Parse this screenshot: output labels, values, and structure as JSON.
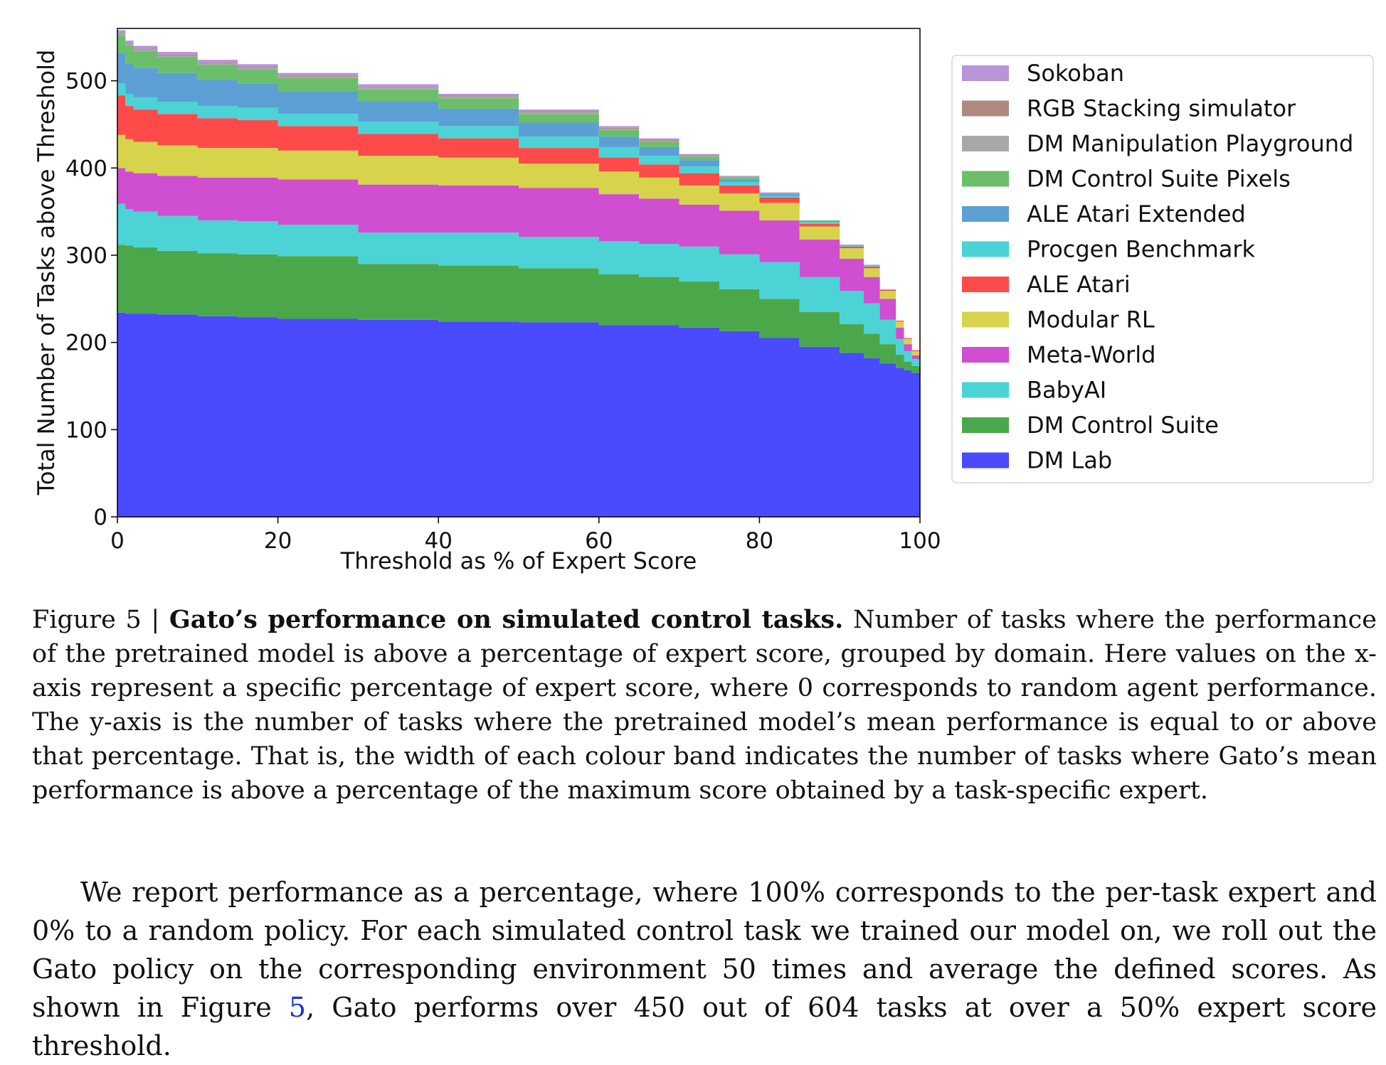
{
  "chart_data": {
    "type": "area",
    "stacked": true,
    "xlabel": "Threshold as % of Expert Score",
    "ylabel": "Total Number of Tasks above Threshold",
    "xlim": [
      0,
      100
    ],
    "ylim": [
      0,
      560
    ],
    "xticks": [
      0,
      20,
      40,
      60,
      80,
      100
    ],
    "yticks": [
      0,
      100,
      200,
      300,
      400,
      500
    ],
    "legend_position": "right",
    "x": [
      0,
      1,
      2,
      5,
      10,
      15,
      20,
      30,
      40,
      50,
      60,
      65,
      70,
      75,
      80,
      85,
      90,
      93,
      95,
      97,
      98,
      99,
      100
    ],
    "series": [
      {
        "name": "DM Lab",
        "color": "#4a4aff",
        "values": [
          234,
          233,
          233,
          232,
          230,
          229,
          227,
          226,
          224,
          223,
          220,
          220,
          217,
          213,
          205,
          195,
          188,
          182,
          176,
          171,
          168,
          165,
          155
        ]
      },
      {
        "name": "DM Control Suite",
        "color": "#4aa84a",
        "values": [
          78,
          78,
          76,
          73,
          72,
          72,
          72,
          64,
          64,
          62,
          58,
          55,
          53,
          48,
          45,
          40,
          33,
          28,
          22,
          15,
          10,
          8,
          5
        ]
      },
      {
        "name": "BabyAI",
        "color": "#4bd3d6",
        "values": [
          47,
          42,
          41,
          40,
          38,
          38,
          36,
          36,
          38,
          36,
          38,
          38,
          40,
          40,
          42,
          40,
          38,
          35,
          28,
          18,
          12,
          8,
          2
        ]
      },
      {
        "name": "Meta-World",
        "color": "#d04ed0",
        "values": [
          41,
          43,
          44,
          46,
          49,
          50,
          52,
          55,
          54,
          56,
          54,
          52,
          48,
          50,
          48,
          43,
          37,
          30,
          24,
          13,
          8,
          4,
          1
        ]
      },
      {
        "name": "Modular RL",
        "color": "#d7d44c",
        "values": [
          38,
          37,
          36,
          35,
          34,
          34,
          33,
          33,
          32,
          28,
          26,
          24,
          22,
          20,
          20,
          15,
          12,
          10,
          9,
          7,
          6,
          5,
          3
        ]
      },
      {
        "name": "ALE Atari",
        "color": "#ff4a4a",
        "values": [
          45,
          38,
          37,
          36,
          34,
          32,
          28,
          25,
          22,
          18,
          16,
          15,
          14,
          9,
          6,
          3,
          2,
          2,
          1,
          1,
          1,
          1,
          1
        ]
      },
      {
        "name": "Procgen Benchmark",
        "color": "#4bd3d6",
        "values": [
          14,
          14,
          14,
          14,
          14,
          14,
          14,
          14,
          14,
          13,
          12,
          10,
          8,
          4,
          2,
          2,
          1,
          1,
          1,
          0,
          0,
          0,
          0
        ]
      },
      {
        "name": "ALE Atari Extended",
        "color": "#5b9fd4",
        "values": [
          35,
          35,
          34,
          33,
          30,
          28,
          26,
          23,
          20,
          16,
          12,
          10,
          7,
          3,
          2,
          1,
          1,
          1,
          0,
          0,
          0,
          0,
          0
        ]
      },
      {
        "name": "DM Control Suite Pixels",
        "color": "#6bbf6b",
        "values": [
          20,
          20,
          19,
          18,
          17,
          16,
          15,
          14,
          12,
          10,
          8,
          6,
          4,
          2,
          1,
          1,
          0,
          0,
          0,
          0,
          0,
          0,
          0
        ]
      },
      {
        "name": "DM Manipulation Playground",
        "color": "#a8a8a8",
        "values": [
          2,
          2,
          2,
          2,
          2,
          2,
          2,
          2,
          2,
          2,
          1,
          1,
          1,
          1,
          0,
          0,
          0,
          0,
          0,
          0,
          0,
          0,
          0
        ]
      },
      {
        "name": "RGB Stacking simulator",
        "color": "#b08880",
        "values": [
          1,
          1,
          1,
          1,
          1,
          1,
          1,
          1,
          1,
          1,
          1,
          1,
          1,
          0,
          0,
          0,
          0,
          0,
          0,
          0,
          0,
          0,
          0
        ]
      },
      {
        "name": "Sokoban",
        "color": "#b894d8",
        "values": [
          3,
          3,
          3,
          3,
          3,
          3,
          3,
          3,
          2,
          2,
          2,
          2,
          1,
          1,
          1,
          0,
          0,
          0,
          0,
          0,
          0,
          0,
          0
        ]
      }
    ]
  },
  "caption": {
    "label": "Figure 5 | ",
    "bold": "Gato’s performance on simulated control tasks.",
    "text": " Number of tasks where the performance of the pretrained model is above a percentage of expert score, grouped by domain. Here values on the x-axis represent a specific percentage of expert score, where 0 corresponds to random agent performance. The y-axis is the number of tasks where the pretrained model’s mean performance is equal to or above that percentage. That is, the width of each colour band indicates the number of tasks where Gato’s mean performance is above a percentage of the maximum score obtained by a task-specific expert."
  },
  "body": {
    "before_link": "We report performance as a percentage, where 100% corresponds to the per-task expert and 0% to a random policy. For each simulated control task we trained our model on, we roll out the Gato policy on the corresponding environment 50 times and average the defined scores. As shown in Figure ",
    "link": "5",
    "after_link": ", Gato performs over 450 out of 604 tasks at over a 50% expert score threshold."
  }
}
